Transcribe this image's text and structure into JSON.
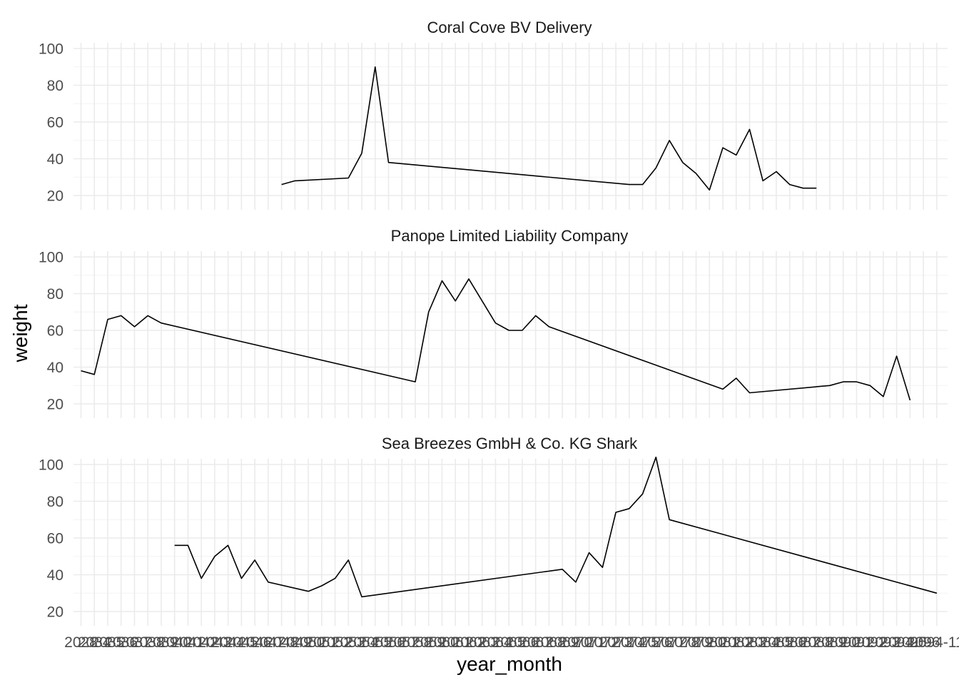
{
  "chart_data": {
    "type": "line",
    "xlabel": "year_month",
    "ylabel": "weight",
    "ylim": [
      20,
      100
    ],
    "yticks": [
      20,
      40,
      60,
      80,
      100
    ],
    "grid": true,
    "x_periods": 65,
    "x_tick_labels": [
      "2028",
      "2034",
      "2035",
      "2036",
      "2037",
      "2038",
      "2039",
      "2040",
      "2041",
      "2042",
      "2043",
      "2044",
      "2045",
      "2046",
      "2047",
      "2048",
      "2049",
      "2050",
      "2051",
      "2052",
      "2053",
      "2054",
      "2055",
      "2056",
      "2057",
      "2058",
      "2059",
      "2060",
      "2061",
      "2062",
      "2063",
      "2064",
      "2065",
      "2066",
      "2067",
      "2068",
      "2069",
      "2070",
      "2071",
      "2072",
      "2073",
      "2074",
      "2075",
      "2076",
      "2077",
      "2078",
      "2079",
      "2080",
      "2081",
      "2082",
      "2083",
      "2084",
      "2085",
      "2086",
      "2087",
      "2088",
      "2089",
      "2090",
      "2091",
      "2092",
      "2093",
      "2094",
      "2095",
      "2096",
      "2094-11"
    ],
    "panels": [
      {
        "title": "Coral Cove BV Delivery",
        "series": [
          {
            "x": [
              15,
              16,
              20,
              21,
              22,
              23,
              41,
              42,
              43,
              44,
              45,
              46,
              47,
              48,
              49,
              50,
              51,
              52,
              53,
              54,
              55
            ],
            "y": [
              26,
              28,
              29.5,
              43,
              90,
              38,
              26,
              26,
              35,
              50,
              38,
              32,
              23,
              46,
              42,
              56,
              28,
              33,
              26,
              24,
              24
            ]
          }
        ]
      },
      {
        "title": "Panope Limited Liability Company",
        "series": [
          {
            "x": [
              0,
              1,
              2,
              3,
              4,
              5,
              6,
              25,
              26,
              27,
              28,
              29,
              30,
              31,
              32,
              33,
              34,
              35,
              48,
              49,
              50,
              56,
              57,
              58,
              59,
              60,
              61,
              62
            ],
            "y": [
              38,
              36,
              66,
              68,
              62,
              68,
              64,
              32,
              70,
              87,
              76,
              88,
              76,
              64,
              60,
              60,
              68,
              62,
              28,
              34,
              26,
              30,
              32,
              32,
              30,
              24,
              46,
              22
            ]
          }
        ]
      },
      {
        "title": "Sea Breezes GmbH & Co. KG Shark",
        "series": [
          {
            "x": [
              7,
              8,
              9,
              10,
              11,
              12,
              13,
              14,
              17,
              18,
              19,
              20,
              21,
              36,
              37,
              38,
              39,
              40,
              41,
              42,
              43,
              44,
              64
            ],
            "y": [
              56,
              56,
              38,
              50,
              56,
              38,
              48,
              36,
              31,
              34,
              38,
              48,
              28,
              43,
              36,
              52,
              44,
              74,
              76,
              84,
              104,
              70,
              30
            ]
          }
        ]
      }
    ]
  }
}
